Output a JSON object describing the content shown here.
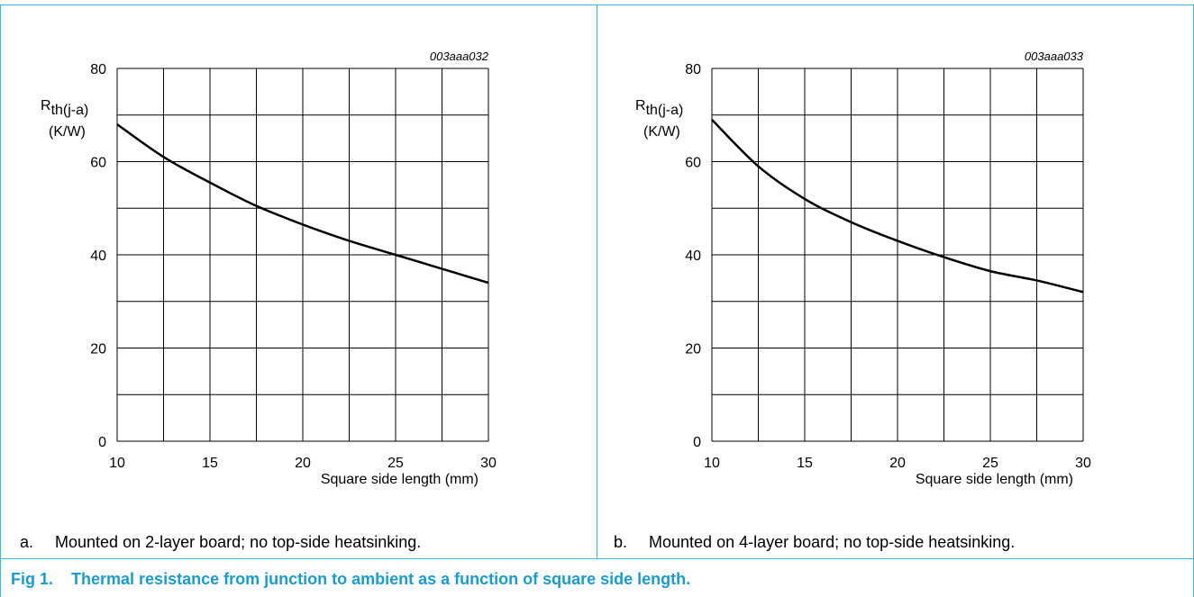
{
  "colors": {
    "frame": "#3fb4d6",
    "title": "#1a9ccd",
    "grid": "#000000",
    "curve": "#000000"
  },
  "figure": {
    "number": "Fig 1.",
    "title": "Thermal resistance from junction to ambient as a function of square side length."
  },
  "panels": [
    {
      "caption_letter": "a.",
      "caption_text": "Mounted on 2-layer board; no top-side heatsinking."
    },
    {
      "caption_letter": "b.",
      "caption_text": "Mounted on 4-layer board; no top-side heatsinking."
    }
  ],
  "chart_data": [
    {
      "type": "line",
      "code": "003aaa032",
      "ylabel_main": "R",
      "ylabel_sub": "th(j-a)",
      "ylabel_unit": "(K/W)",
      "xlabel": "Square side length (mm)",
      "xlim": [
        10,
        30
      ],
      "ylim": [
        0,
        80
      ],
      "xticks": [
        10,
        15,
        20,
        25,
        30
      ],
      "yticks": [
        0,
        20,
        40,
        60,
        80
      ],
      "grid": true,
      "series": [
        {
          "x": [
            10,
            12.5,
            15,
            17.5,
            20,
            22.5,
            25,
            27.5,
            30
          ],
          "values": [
            68,
            61,
            55.5,
            50.5,
            46.5,
            43,
            40,
            37,
            34
          ]
        }
      ]
    },
    {
      "type": "line",
      "code": "003aaa033",
      "ylabel_main": "R",
      "ylabel_sub": "th(j-a)",
      "ylabel_unit": "(K/W)",
      "xlabel": "Square side length (mm)",
      "xlim": [
        10,
        30
      ],
      "ylim": [
        0,
        80
      ],
      "xticks": [
        10,
        15,
        20,
        25,
        30
      ],
      "yticks": [
        0,
        20,
        40,
        60,
        80
      ],
      "grid": true,
      "series": [
        {
          "x": [
            10,
            12.5,
            15,
            17.5,
            20,
            22.5,
            25,
            27.5,
            30
          ],
          "values": [
            69,
            59,
            52,
            47,
            43,
            39.5,
            36.5,
            34.5,
            32
          ]
        }
      ]
    }
  ]
}
